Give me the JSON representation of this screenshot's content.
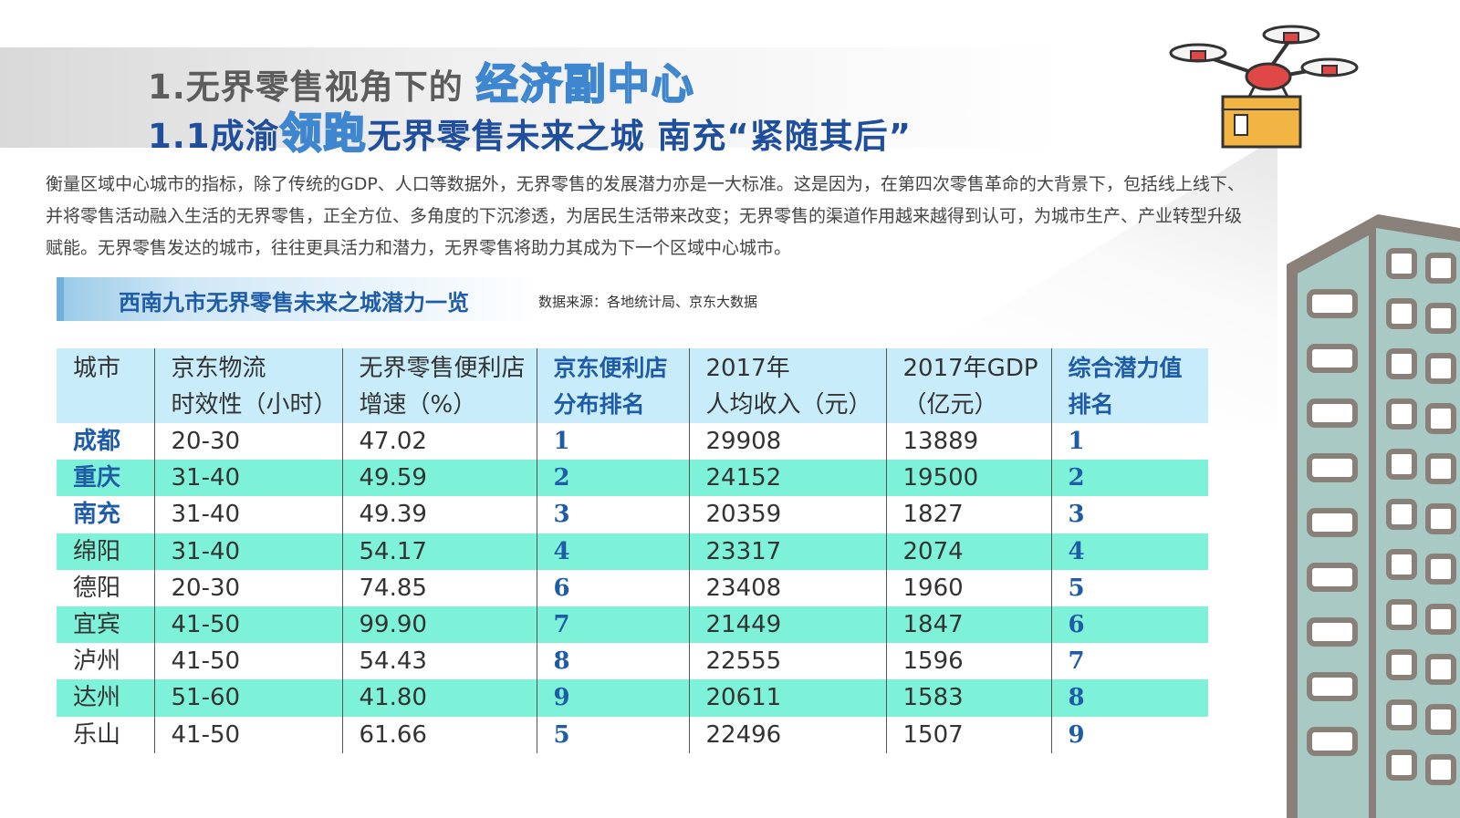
{
  "title": {
    "line1_prefix": "1.无界零售视角下的",
    "line1_highlight": "经济副中心",
    "line2_prefix": "1.1成渝",
    "line2_highlight": "领跑",
    "line2_suffix": "无界零售未来之城 南充“紧随其后”"
  },
  "intro": "衡量区域中心城市的指标，除了传统的GDP、人口等数据外，无界零售的发展潜力亦是一大标准。这是因为，在第四次零售革命的大背景下，包括线上线下、并将零售活动融入生活的无界零售，正全方位、多角度的下沉渗透，为居民生活带来改变；无界零售的渠道作用越来越得到认可，为城市生产、产业转型升级赋能。无界零售发达的城市，往往更具活力和潜力，无界零售将助力其成为下一个区域中心城市。",
  "subhead": "西南九市无界零售未来之城潜力一览",
  "source": "数据来源：各地统计局、京东大数据",
  "table": {
    "headers": [
      {
        "l1": "城市",
        "l2": ""
      },
      {
        "l1": "京东物流",
        "l2": "时效性（小时）"
      },
      {
        "l1": "无界零售便利店",
        "l2": "增速（%）"
      },
      {
        "l1": "京东便利店",
        "l2": "分布排名"
      },
      {
        "l1": "2017年",
        "l2": "人均收入（元）"
      },
      {
        "l1": "2017年GDP",
        "l2": "（亿元）"
      },
      {
        "l1": "综合潜力值",
        "l2": "排名"
      }
    ],
    "rows": [
      [
        "成都",
        "20-30",
        "47.02",
        "1",
        "29908",
        "13889",
        "1"
      ],
      [
        "重庆",
        "31-40",
        "49.59",
        "2",
        "24152",
        "19500",
        "2"
      ],
      [
        "南充",
        "31-40",
        "49.39",
        "3",
        "20359",
        "1827",
        "3"
      ],
      [
        "绵阳",
        "31-40",
        "54.17",
        "4",
        "23317",
        "2074",
        "4"
      ],
      [
        "德阳",
        "20-30",
        "74.85",
        "6",
        "23408",
        "1960",
        "5"
      ],
      [
        "宜宾",
        "41-50",
        "99.90",
        "7",
        "21449",
        "1847",
        "6"
      ],
      [
        "泸州",
        "41-50",
        "54.43",
        "8",
        "22555",
        "1596",
        "7"
      ],
      [
        "达州",
        "51-60",
        "41.80",
        "9",
        "20611",
        "1583",
        "8"
      ],
      [
        "乐山",
        "41-50",
        "61.66",
        "5",
        "22496",
        "1507",
        "9"
      ]
    ]
  },
  "colors": {
    "accent_blue": "#1f5ca7",
    "header_bg": "#c8ecfa",
    "row_highlight": "#7ef2d8"
  },
  "decor": {
    "drone_icon": "delivery-drone-icon",
    "building_icon": "building-icon"
  }
}
